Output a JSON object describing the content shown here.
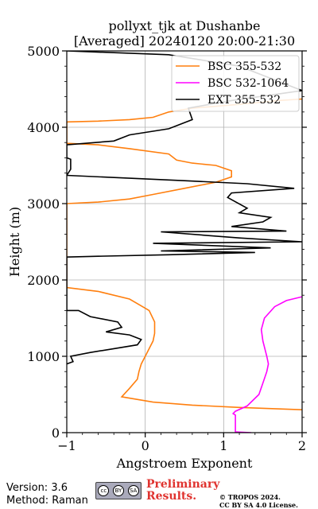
{
  "chart_data": {
    "type": "line",
    "title": "pollyxt_tjk at Dushanbe",
    "subtitle": "[Averaged] 20240120 20:00-21:30",
    "xlabel": "Angstroem Exponent",
    "ylabel": "Height (m)",
    "xlim": [
      -1,
      2
    ],
    "ylim": [
      0,
      5000
    ],
    "x_ticks": [
      "−1",
      "0",
      "1",
      "2"
    ],
    "y_ticks": [
      "0",
      "1000",
      "2000",
      "3000",
      "4000",
      "5000"
    ],
    "grid": true,
    "legend_position": "top-right",
    "series": [
      {
        "name": "BSC 355-532",
        "color": "#ff7f0e",
        "points": [
          [
            2.0,
            300
          ],
          [
            1.2,
            330
          ],
          [
            0.6,
            360
          ],
          [
            0.1,
            400
          ],
          [
            -0.3,
            470
          ],
          [
            -0.2,
            580
          ],
          [
            -0.1,
            700
          ],
          [
            -0.08,
            800
          ],
          [
            -0.05,
            900
          ],
          [
            0.0,
            1000
          ],
          [
            0.05,
            1100
          ],
          [
            0.1,
            1200
          ],
          [
            0.12,
            1300
          ],
          [
            0.12,
            1450
          ],
          [
            0.05,
            1600
          ],
          [
            -0.2,
            1750
          ],
          [
            -0.6,
            1850
          ],
          [
            -1.0,
            1900
          ],
          [
            -1.0,
            3000
          ],
          [
            -0.6,
            3020
          ],
          [
            -0.2,
            3060
          ],
          [
            0.1,
            3120
          ],
          [
            0.5,
            3200
          ],
          [
            0.9,
            3280
          ],
          [
            1.1,
            3350
          ],
          [
            1.1,
            3430
          ],
          [
            0.9,
            3500
          ],
          [
            0.6,
            3530
          ],
          [
            0.4,
            3570
          ],
          [
            0.3,
            3650
          ],
          [
            -0.2,
            3720
          ],
          [
            -0.6,
            3770
          ],
          [
            -1.0,
            3790
          ],
          [
            -1.0,
            4070
          ],
          [
            -0.6,
            4080
          ],
          [
            -0.2,
            4100
          ],
          [
            0.1,
            4130
          ],
          [
            0.3,
            4200
          ],
          [
            0.6,
            4250
          ],
          [
            1.2,
            4300
          ],
          [
            1.7,
            4350
          ],
          [
            2.0,
            4370
          ]
        ]
      },
      {
        "name": "BSC 532-1064",
        "color": "#ff00ff",
        "points": [
          [
            1.35,
            0
          ],
          [
            1.15,
            10
          ],
          [
            1.15,
            120
          ],
          [
            1.15,
            230
          ],
          [
            1.12,
            250
          ],
          [
            1.15,
            280
          ],
          [
            1.3,
            350
          ],
          [
            1.45,
            500
          ],
          [
            1.5,
            650
          ],
          [
            1.55,
            800
          ],
          [
            1.57,
            900
          ],
          [
            1.55,
            1000
          ],
          [
            1.5,
            1200
          ],
          [
            1.48,
            1350
          ],
          [
            1.52,
            1500
          ],
          [
            1.65,
            1650
          ],
          [
            1.8,
            1730
          ],
          [
            2.0,
            1780
          ]
        ]
      },
      {
        "name": "EXT 355-532",
        "color": "#000000",
        "points": [
          [
            -1.0,
            900
          ],
          [
            -0.92,
            930
          ],
          [
            -0.95,
            1000
          ],
          [
            -0.7,
            1050
          ],
          [
            -0.4,
            1100
          ],
          [
            -0.1,
            1150
          ],
          [
            -0.05,
            1220
          ],
          [
            -0.2,
            1280
          ],
          [
            -0.5,
            1320
          ],
          [
            -0.3,
            1380
          ],
          [
            -0.35,
            1450
          ],
          [
            -0.7,
            1520
          ],
          [
            -0.85,
            1600
          ],
          [
            -1.0,
            1600
          ],
          [
            -1.0,
            2300
          ],
          [
            -0.6,
            2310
          ],
          [
            0.3,
            2330
          ],
          [
            1.4,
            2360
          ],
          [
            0.2,
            2380
          ],
          [
            1.6,
            2420
          ],
          [
            0.1,
            2480
          ],
          [
            2.0,
            2500
          ],
          [
            1.2,
            2550
          ],
          [
            0.2,
            2630
          ],
          [
            1.8,
            2640
          ],
          [
            1.1,
            2700
          ],
          [
            1.5,
            2760
          ],
          [
            1.6,
            2820
          ],
          [
            1.2,
            2880
          ],
          [
            1.3,
            2940
          ],
          [
            1.05,
            3080
          ],
          [
            1.1,
            3140
          ],
          [
            1.9,
            3200
          ],
          [
            1.3,
            3260
          ],
          [
            0.5,
            3300
          ],
          [
            -1.0,
            3370
          ],
          [
            -0.95,
            3450
          ],
          [
            -0.95,
            3580
          ],
          [
            -1.0,
            3600
          ],
          [
            -1.0,
            3770
          ],
          [
            -0.4,
            3820
          ],
          [
            -0.2,
            3900
          ],
          [
            0.3,
            3980
          ],
          [
            0.6,
            4100
          ],
          [
            0.55,
            4250
          ],
          [
            1.1,
            4350
          ],
          [
            2.0,
            4480
          ],
          [
            1.7,
            4600
          ],
          [
            1.2,
            4800
          ],
          [
            0.3,
            4950
          ],
          [
            -1.0,
            5000
          ]
        ]
      }
    ]
  },
  "footer": {
    "version": "Version: 3.6",
    "method": "Method: Raman",
    "prelim_line1": "Preliminary",
    "prelim_line2": "Results.",
    "copyright_line1": "© TROPOS 2024.",
    "copyright_line2": "CC BY SA 4.0 License.",
    "license_badge": {
      "cc": "cc",
      "by": "BY",
      "sa": "SA"
    }
  }
}
